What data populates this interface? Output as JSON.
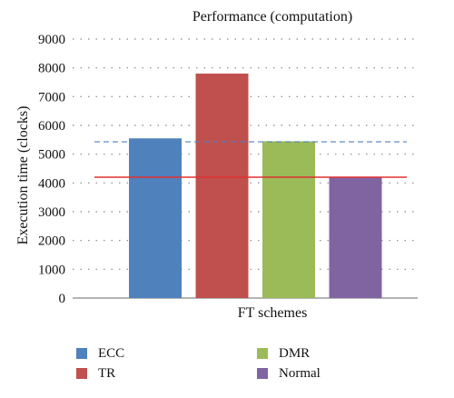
{
  "chart_data": {
    "type": "bar",
    "title": "Performance (computation)",
    "xlabel": "FT schemes",
    "ylabel": "Execution time (clocks)",
    "categories": [
      "ECC",
      "TR",
      "DMR",
      "Normal"
    ],
    "values": [
      5550,
      7800,
      5450,
      4200
    ],
    "colors": [
      "#4f81bd",
      "#c0504d",
      "#9bbb59",
      "#8064a2"
    ],
    "ylim": [
      0,
      9000
    ],
    "yticks": [
      "0",
      "1000",
      "2000",
      "3000",
      "4000",
      "5000",
      "6000",
      "7000",
      "8000",
      "9000"
    ],
    "reference_lines": [
      {
        "value": 5430,
        "style": "dashed",
        "color": "#4f81bd"
      },
      {
        "value": 4200,
        "style": "solid",
        "color": "#e03030"
      }
    ],
    "grid": "dotted-horizontal",
    "legend": [
      {
        "label": "ECC",
        "color": "#4f81bd"
      },
      {
        "label": "TR",
        "color": "#c0504d"
      },
      {
        "label": "DMR",
        "color": "#9bbb59"
      },
      {
        "label": "Normal",
        "color": "#8064a2"
      }
    ],
    "legend_placement": "bottom"
  }
}
